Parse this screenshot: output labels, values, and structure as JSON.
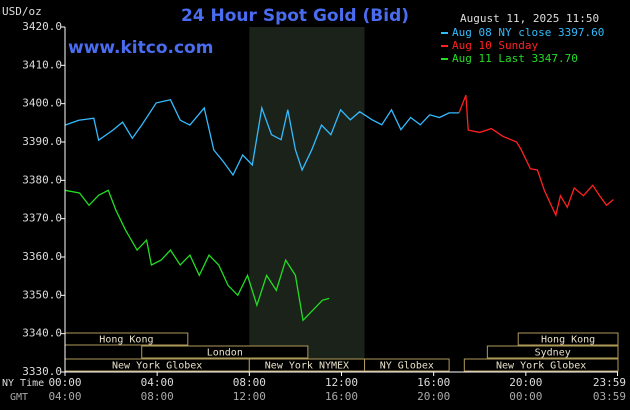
{
  "chart_data": {
    "type": "line",
    "title": "24 Hour Spot Gold (Bid)",
    "site": "www.kitco.com",
    "y_unit": "USD/oz",
    "timestamp": "August 11, 2025 11:50",
    "x_row_labels": [
      "NY Time",
      "GMT"
    ],
    "xlim": [
      0,
      24
    ],
    "xticks": [
      {
        "value": 0,
        "label": "00:00"
      },
      {
        "value": 4,
        "label": "04:00"
      },
      {
        "value": 8,
        "label": "08:00"
      },
      {
        "value": 12,
        "label": "12:00"
      },
      {
        "value": 16,
        "label": "16:00"
      },
      {
        "value": 20,
        "label": "20:00"
      },
      {
        "value": 23.98,
        "label": "23:59"
      }
    ],
    "xtick_labels_gmt": [
      "04:00",
      "08:00",
      "12:00",
      "16:00",
      "20:00",
      "00:00",
      "03:59"
    ],
    "ylim": [
      3330,
      3420
    ],
    "yticks": [
      {
        "value": 3330,
        "label": "3330.0"
      },
      {
        "value": 3340,
        "label": "3340.0"
      },
      {
        "value": 3350,
        "label": "3350.0"
      },
      {
        "value": 3360,
        "label": "3360.0"
      },
      {
        "value": 3370,
        "label": "3370.0"
      },
      {
        "value": 3380,
        "label": "3380.0"
      },
      {
        "value": 3390,
        "label": "3390.0"
      },
      {
        "value": 3400,
        "label": "3400.0"
      },
      {
        "value": 3410,
        "label": "3410.0"
      },
      {
        "value": 3420,
        "label": "3420.0"
      }
    ],
    "grid": false,
    "highlight": [
      8,
      13
    ],
    "series": [
      {
        "name": "Aug 08 NY close 3397.60",
        "color": "#33bbff",
        "x": [
          0,
          0.6,
          1.25,
          1.46,
          2.08,
          2.5,
          2.92,
          3.33,
          3.96,
          4.58,
          5.0,
          5.42,
          6.04,
          6.46,
          6.88,
          7.29,
          7.71,
          8.13,
          8.54,
          8.96,
          9.38,
          9.67,
          10.0,
          10.29,
          10.71,
          11.13,
          11.54,
          11.96,
          12.38,
          12.79,
          13.33,
          13.75,
          14.17,
          14.58,
          15.0,
          15.42,
          15.83,
          16.25,
          16.67,
          17.1
        ],
        "values": [
          3394.4,
          3395.7,
          3396.2,
          3390.5,
          3393.1,
          3395.2,
          3391.0,
          3394.4,
          3400.2,
          3401.0,
          3395.7,
          3394.4,
          3398.9,
          3387.9,
          3384.8,
          3381.4,
          3386.6,
          3384.0,
          3398.9,
          3391.9,
          3390.6,
          3398.4,
          3388.0,
          3382.7,
          3388.0,
          3394.4,
          3391.9,
          3398.4,
          3395.8,
          3397.9,
          3395.8,
          3394.5,
          3398.4,
          3393.2,
          3396.4,
          3394.5,
          3397.1,
          3396.4,
          3397.6,
          3397.6
        ]
      },
      {
        "name": "Aug 10 Sunday",
        "color": "#ff2020",
        "x": [
          17.1,
          17.4,
          17.5,
          18.0,
          18.5,
          19.0,
          19.6,
          19.8,
          20.2,
          20.5,
          20.8,
          21.1,
          21.3,
          21.5,
          21.8,
          22.1,
          22.5,
          22.9,
          23.2,
          23.5,
          23.8
        ],
        "values": [
          3397.6,
          3402.2,
          3393.1,
          3392.5,
          3393.5,
          3391.5,
          3390.0,
          3388.0,
          3383.0,
          3382.7,
          3377.4,
          3373.5,
          3370.9,
          3376.0,
          3373.0,
          3378.0,
          3376.0,
          3378.7,
          3376.0,
          3373.5,
          3375.0
        ]
      },
      {
        "name": "Aug 11 Last 3347.70",
        "color": "#22dd22",
        "x": [
          0,
          0.63,
          1.04,
          1.46,
          1.88,
          2.21,
          2.63,
          3.13,
          3.54,
          3.75,
          4.17,
          4.58,
          5.0,
          5.42,
          5.83,
          6.25,
          6.67,
          7.08,
          7.5,
          7.92,
          8.33,
          8.75,
          9.17,
          9.58,
          10.0,
          10.33,
          10.75,
          11.17,
          11.46
        ],
        "values": [
          3377.4,
          3376.7,
          3373.5,
          3376.1,
          3377.4,
          3372.2,
          3367.0,
          3361.8,
          3364.4,
          3357.9,
          3359.2,
          3361.8,
          3357.9,
          3360.5,
          3355.2,
          3360.5,
          3357.9,
          3352.6,
          3350.0,
          3355.2,
          3347.4,
          3355.2,
          3351.3,
          3359.2,
          3355.2,
          3343.5,
          3346.1,
          3348.7,
          3349.2
        ]
      }
    ],
    "sessions": [
      {
        "label": "Hong Kong",
        "start": 0,
        "end": 5.33,
        "row": 0
      },
      {
        "label": "London",
        "start": 3.33,
        "end": 10.54,
        "row": 1
      },
      {
        "label": "New York Globex",
        "start": 0,
        "end": 8,
        "row": 2
      },
      {
        "label": "New York NYMEX",
        "start": 8,
        "end": 13,
        "row": 2
      },
      {
        "label": "NY Globex",
        "start": 13,
        "end": 16.67,
        "row": 2
      },
      {
        "label": "New York Globex",
        "start": 17.33,
        "end": 24,
        "row": 2
      },
      {
        "label": "Sydney",
        "start": 18.33,
        "end": 24,
        "row": 1
      },
      {
        "label": "Hong Kong",
        "start": 19.67,
        "end": 24,
        "row": 0
      }
    ]
  }
}
